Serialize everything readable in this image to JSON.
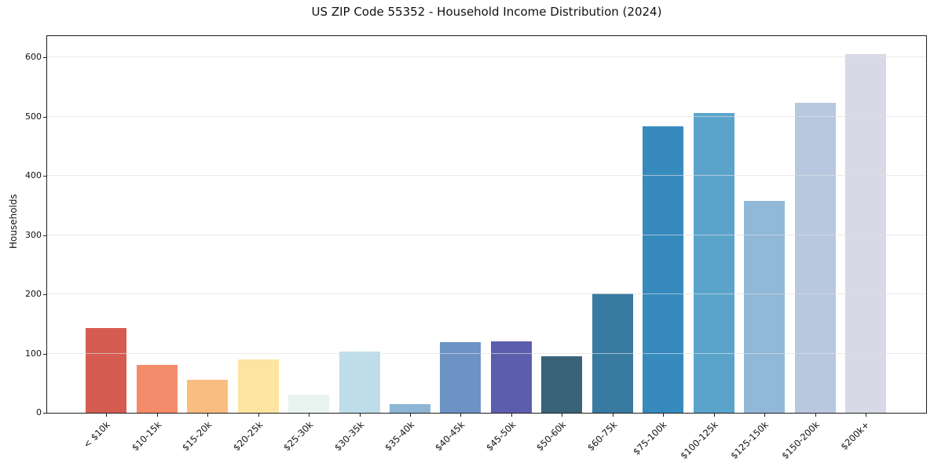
{
  "chart_data": {
    "type": "bar",
    "title": "US ZIP Code 55352 - Household Income Distribution (2024)",
    "xlabel": "",
    "ylabel": "Households",
    "categories": [
      "< $10k",
      "$10-15k",
      "$15-20k",
      "$20-25k",
      "$25-30k",
      "$30-35k",
      "$35-40k",
      "$40-45k",
      "$45-50k",
      "$50-60k",
      "$60-75k",
      "$75-100k",
      "$100-125k",
      "$125-150k",
      "$150-200k",
      "$200k+"
    ],
    "values": [
      143,
      81,
      56,
      90,
      31,
      103,
      15,
      119,
      120,
      95,
      202,
      484,
      506,
      358,
      523,
      606
    ],
    "bar_colors": [
      "#d65c52",
      "#f48b6a",
      "#fabd80",
      "#fde4a0",
      "#e9f4f0",
      "#bedde9",
      "#8db6d6",
      "#6c93c4",
      "#5c5ead",
      "#3a6377",
      "#397aa0",
      "#368abe",
      "#5aa4cb",
      "#92b8d8",
      "#b8c8df",
      "#d7d9e7"
    ],
    "yticks": [
      0,
      100,
      200,
      300,
      400,
      500,
      600
    ],
    "ylim": [
      0,
      636
    ],
    "grid": "horizontal-gridlines-over-bars",
    "legend": "none",
    "background": "#ffffff",
    "axis_color": "#1f1f1f",
    "grid_color": "#dededd"
  }
}
